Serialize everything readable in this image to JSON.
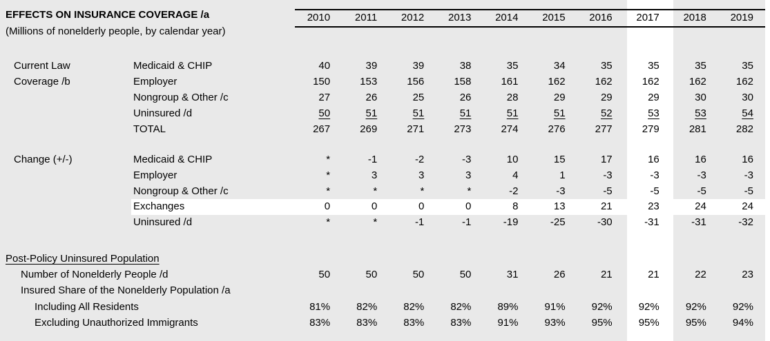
{
  "table": {
    "title": "EFFECTS ON INSURANCE COVERAGE /a",
    "subtitle": "(Millions of nonelderly people, by calendar year)",
    "years": [
      "2010",
      "2011",
      "2012",
      "2013",
      "2014",
      "2015",
      "2016",
      "2017",
      "2018",
      "2019"
    ],
    "highlight": {
      "column": "2017",
      "row": "Exchanges"
    },
    "sections": [
      {
        "group_label_lines": [
          "Current Law",
          "Coverage /b"
        ],
        "rows": [
          {
            "label": "Medicaid & CHIP",
            "values": [
              "40",
              "39",
              "39",
              "38",
              "35",
              "34",
              "35",
              "35",
              "35",
              "35"
            ]
          },
          {
            "label": "Employer",
            "values": [
              "150",
              "153",
              "156",
              "158",
              "161",
              "162",
              "162",
              "162",
              "162",
              "162"
            ]
          },
          {
            "label": "Nongroup & Other /c",
            "values": [
              "27",
              "26",
              "25",
              "26",
              "28",
              "29",
              "29",
              "29",
              "30",
              "30"
            ]
          },
          {
            "label": "Uninsured /d",
            "underline_values": true,
            "values": [
              "50",
              "51",
              "51",
              "51",
              "51",
              "51",
              "52",
              "53",
              "53",
              "54"
            ]
          },
          {
            "label": "TOTAL",
            "values": [
              "267",
              "269",
              "271",
              "273",
              "274",
              "276",
              "277",
              "279",
              "281",
              "282"
            ]
          }
        ]
      },
      {
        "group_label_lines": [
          "Change (+/-)"
        ],
        "rows": [
          {
            "label": "Medicaid & CHIP",
            "values": [
              "*",
              "-1",
              "-2",
              "-3",
              "10",
              "15",
              "17",
              "16",
              "16",
              "16"
            ]
          },
          {
            "label": "Employer",
            "values": [
              "*",
              "3",
              "3",
              "3",
              "4",
              "1",
              "-3",
              "-3",
              "-3",
              "-3"
            ]
          },
          {
            "label": "Nongroup & Other /c",
            "values": [
              "*",
              "*",
              "*",
              "*",
              "-2",
              "-3",
              "-5",
              "-5",
              "-5",
              "-5"
            ]
          },
          {
            "label": "Exchanges",
            "highlight": true,
            "values": [
              "0",
              "0",
              "0",
              "0",
              "8",
              "13",
              "21",
              "23",
              "24",
              "24"
            ]
          },
          {
            "label": "Uninsured /d",
            "values": [
              "*",
              "*",
              "-1",
              "-1",
              "-19",
              "-25",
              "-30",
              "-31",
              "-31",
              "-32"
            ]
          }
        ]
      },
      {
        "header": "Post-Policy Uninsured Population",
        "rows": [
          {
            "label": "Number of Nonelderly People /d",
            "indent": 1,
            "values": [
              "50",
              "50",
              "50",
              "50",
              "31",
              "26",
              "21",
              "21",
              "22",
              "23"
            ]
          },
          {
            "label": "Insured Share of the Nonelderly Population /a",
            "indent": 1,
            "values": []
          },
          {
            "label": "Including All Residents",
            "indent": 2,
            "values": [
              "81%",
              "82%",
              "82%",
              "82%",
              "89%",
              "91%",
              "92%",
              "92%",
              "92%",
              "92%"
            ]
          },
          {
            "label": "Excluding Unauthorized Immigrants",
            "indent": 2,
            "values": [
              "83%",
              "83%",
              "83%",
              "83%",
              "91%",
              "93%",
              "95%",
              "95%",
              "95%",
              "94%"
            ]
          }
        ]
      }
    ]
  },
  "colors": {
    "background": "#e9e9e9",
    "highlight": "#ffffff",
    "rule": "#000000",
    "text": "#000000"
  }
}
